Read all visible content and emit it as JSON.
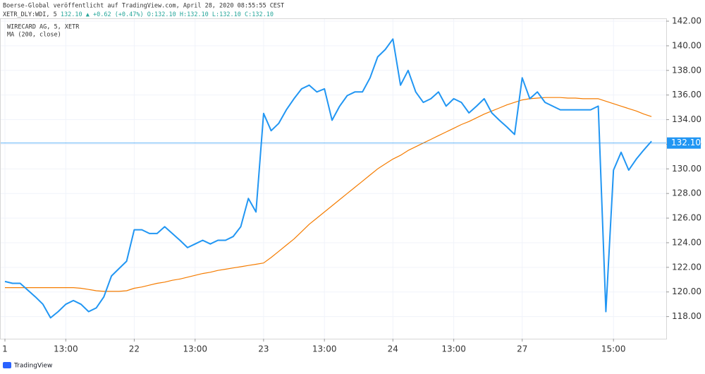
{
  "header": {
    "title": "Boerse-Global veröffentlicht auf TradingView.com, April 28, 2020 08:55:55 CEST",
    "symbol": "XETR_DLY:WDI, 5",
    "last": "132.10",
    "change": "+0.62 (+0.47%)",
    "open": "O:132.10",
    "high": "H:132.10",
    "low": "L:132.10",
    "close": "C:132.10"
  },
  "chart_data": {
    "type": "line",
    "categories": [
      "1",
      null,
      null,
      null,
      null,
      null,
      null,
      null,
      "13:00",
      null,
      null,
      null,
      null,
      null,
      null,
      null,
      null,
      "22",
      null,
      null,
      null,
      null,
      null,
      null,
      null,
      "13:00",
      null,
      null,
      null,
      null,
      null,
      null,
      null,
      null,
      "23",
      null,
      null,
      null,
      null,
      null,
      null,
      null,
      "13:00",
      null,
      null,
      null,
      null,
      null,
      null,
      null,
      null,
      "24",
      null,
      null,
      null,
      null,
      null,
      null,
      null,
      "13:00",
      null,
      null,
      null,
      null,
      null,
      null,
      null,
      null,
      "27",
      null,
      null,
      null,
      null,
      null,
      null,
      null,
      null,
      null,
      null,
      null,
      "15:00",
      null,
      null,
      null,
      null,
      null
    ],
    "series": [
      {
        "name": "WIRECARD AG, 5, XETR",
        "color": "#2196f3",
        "values": [
          120.85,
          120.7,
          120.7,
          120.15,
          119.6,
          119.0,
          117.9,
          118.4,
          119.0,
          119.3,
          119.0,
          118.4,
          118.7,
          119.6,
          121.3,
          121.9,
          122.5,
          125.05,
          125.05,
          124.75,
          124.75,
          125.3,
          124.75,
          124.2,
          123.6,
          123.9,
          124.2,
          123.9,
          124.2,
          124.2,
          124.5,
          125.3,
          127.6,
          126.5,
          134.5,
          133.1,
          133.7,
          134.8,
          135.7,
          136.5,
          136.8,
          136.25,
          136.5,
          133.95,
          135.1,
          135.95,
          136.25,
          136.25,
          137.4,
          139.1,
          139.7,
          140.55,
          136.8,
          138.0,
          136.25,
          135.4,
          135.7,
          136.25,
          135.1,
          135.7,
          135.4,
          134.55,
          135.1,
          135.7,
          134.55,
          133.95,
          133.4,
          132.8,
          137.4,
          135.7,
          136.25,
          135.4,
          135.1,
          134.8,
          134.8,
          134.8,
          134.8,
          134.8,
          135.1,
          118.4,
          129.9,
          131.35,
          129.9,
          130.8,
          131.55,
          132.25
        ]
      },
      {
        "name": "MA (200, close)",
        "color": "#f57c00",
        "values": [
          120.35,
          120.35,
          120.35,
          120.35,
          120.35,
          120.35,
          120.35,
          120.35,
          120.35,
          120.35,
          120.3,
          120.2,
          120.1,
          120.05,
          120.05,
          120.05,
          120.1,
          120.3,
          120.4,
          120.55,
          120.7,
          120.8,
          120.95,
          121.05,
          121.2,
          121.35,
          121.5,
          121.6,
          121.75,
          121.85,
          121.95,
          122.05,
          122.15,
          122.25,
          122.35,
          122.8,
          123.3,
          123.8,
          124.3,
          124.9,
          125.5,
          126.0,
          126.5,
          127.0,
          127.5,
          128.0,
          128.5,
          129.0,
          129.5,
          130.0,
          130.4,
          130.8,
          131.1,
          131.5,
          131.8,
          132.1,
          132.4,
          132.7,
          133.0,
          133.3,
          133.6,
          133.85,
          134.15,
          134.45,
          134.7,
          134.95,
          135.2,
          135.4,
          135.6,
          135.7,
          135.75,
          135.8,
          135.8,
          135.8,
          135.75,
          135.75,
          135.7,
          135.7,
          135.7,
          135.5,
          135.3,
          135.1,
          134.9,
          134.7,
          134.45,
          134.25
        ]
      }
    ],
    "ylim": [
      116.2,
      142.46
    ],
    "yticks": [
      {
        "value": 118,
        "label": "118.00"
      },
      {
        "value": 120,
        "label": "120.00"
      },
      {
        "value": 122,
        "label": "122.00"
      },
      {
        "value": 124,
        "label": "124.00"
      },
      {
        "value": 126,
        "label": "126.00"
      },
      {
        "value": 128,
        "label": "128.00"
      },
      {
        "value": 130,
        "label": "130.00"
      },
      {
        "value": 132,
        "label": "132.00"
      },
      {
        "value": 134,
        "label": "134.00"
      },
      {
        "value": 136,
        "label": "136.00"
      },
      {
        "value": 138,
        "label": "138.00"
      },
      {
        "value": 140,
        "label": "140.00"
      },
      {
        "value": 142,
        "label": "142.00"
      }
    ],
    "price_line": {
      "value": 132.1,
      "label": "132.10",
      "color": "#2196f3"
    },
    "grid": true
  },
  "footer": {
    "brand": "TradingView"
  }
}
